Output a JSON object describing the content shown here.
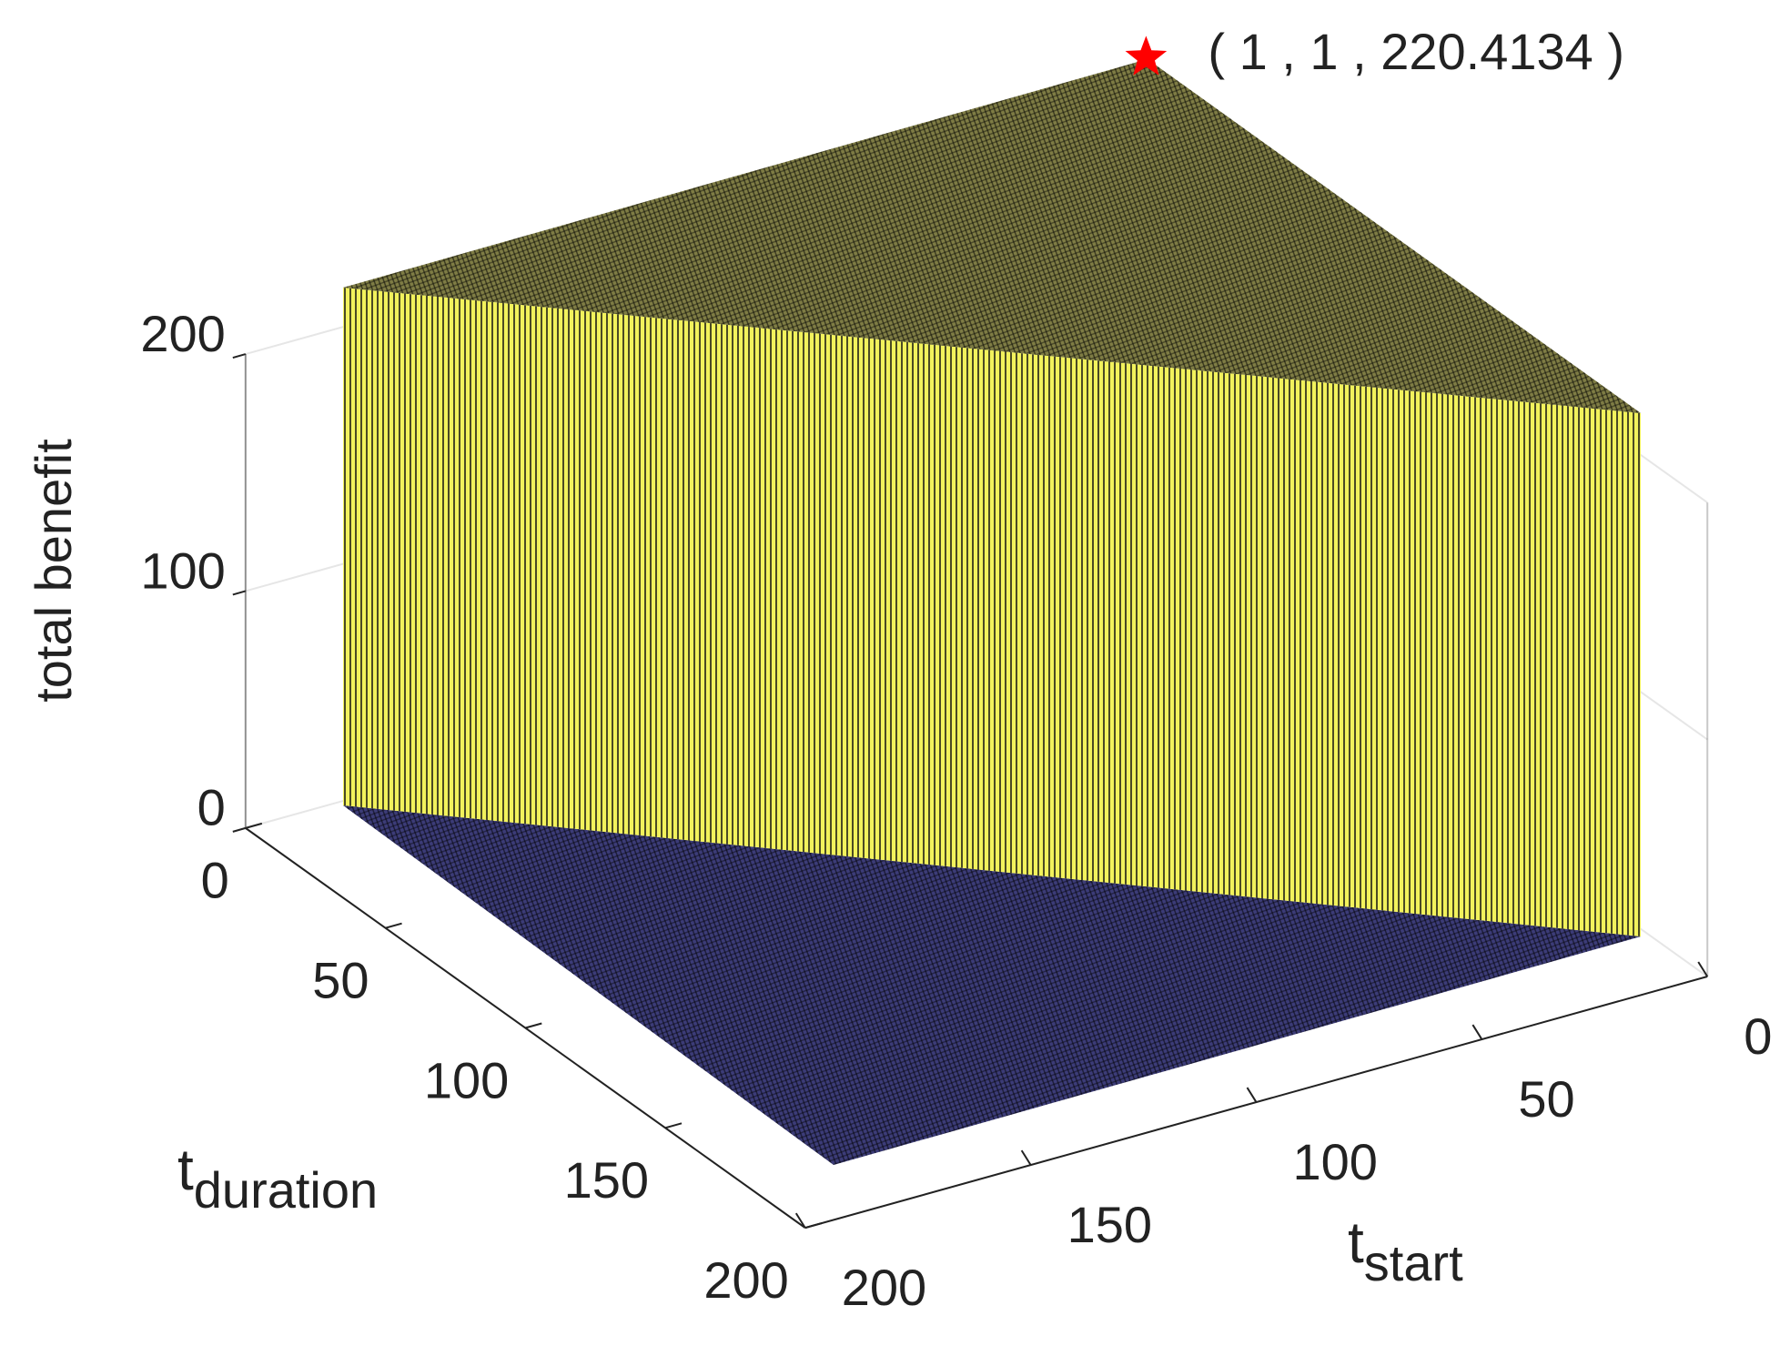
{
  "chart_data": {
    "type": "surface3d",
    "zlabel": "total benefit",
    "xlabel": {
      "text": "t",
      "subscript": "start"
    },
    "ylabel": {
      "text": "t",
      "subscript": "duration"
    },
    "xlim": [
      0,
      200
    ],
    "xticks": [
      0,
      50,
      100,
      150,
      200
    ],
    "ylim": [
      0,
      200
    ],
    "yticks": [
      0,
      50,
      100,
      150,
      200
    ],
    "zlim": [
      0,
      200
    ],
    "zticks": [
      0,
      100,
      200
    ],
    "grid": true,
    "colors": {
      "top": "#7f7d45",
      "wall": "#f2f25c",
      "floor": "#3c3c78"
    },
    "annotation": {
      "x": 1,
      "y": 1,
      "z": 220.4134,
      "label": "( 1 , 1 , 220.4134 )",
      "color": "#ff0000"
    }
  }
}
